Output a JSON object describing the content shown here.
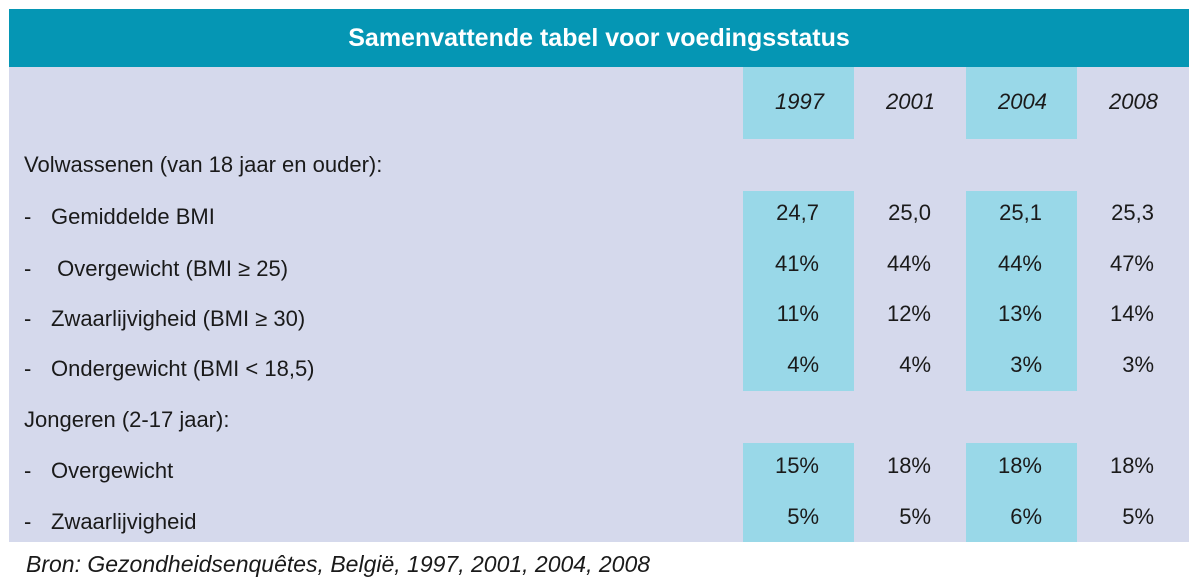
{
  "title": "Samenvattende tabel voor voedingsstatus",
  "years": [
    "1997",
    "2001",
    "2004",
    "2008"
  ],
  "sections": [
    {
      "label": "Volwassenen (van 18 jaar en ouder):",
      "rows": [
        {
          "label": "Gemiddelde BMI",
          "values": [
            "24,7",
            "25,0",
            "25,1",
            "25,3"
          ]
        },
        {
          "label": " Overgewicht (BMI ≥ 25)",
          "values": [
            "41%",
            "44%",
            "44%",
            "47%"
          ]
        },
        {
          "label": "Zwaarlijvigheid (BMI ≥ 30)",
          "values": [
            "11%",
            "12%",
            "13%",
            "14%"
          ]
        },
        {
          "label": "Ondergewicht (BMI < 18,5)",
          "values": [
            "4%",
            "4%",
            "3%",
            "3%"
          ]
        }
      ]
    },
    {
      "label": "Jongeren (2-17 jaar):",
      "rows": [
        {
          "label": "Overgewicht",
          "values": [
            "15%",
            "18%",
            "18%",
            "18%"
          ]
        },
        {
          "label": "Zwaarlijvigheid",
          "values": [
            "5%",
            "5%",
            "6%",
            "5%"
          ]
        }
      ]
    }
  ],
  "source": "Bron: Gezondheidsenquêtes, België, 1997, 2001, 2004, 2008",
  "colors": {
    "header": "#0596b4",
    "panel": "#d5d9ec",
    "highlight": "#99d8e8"
  }
}
